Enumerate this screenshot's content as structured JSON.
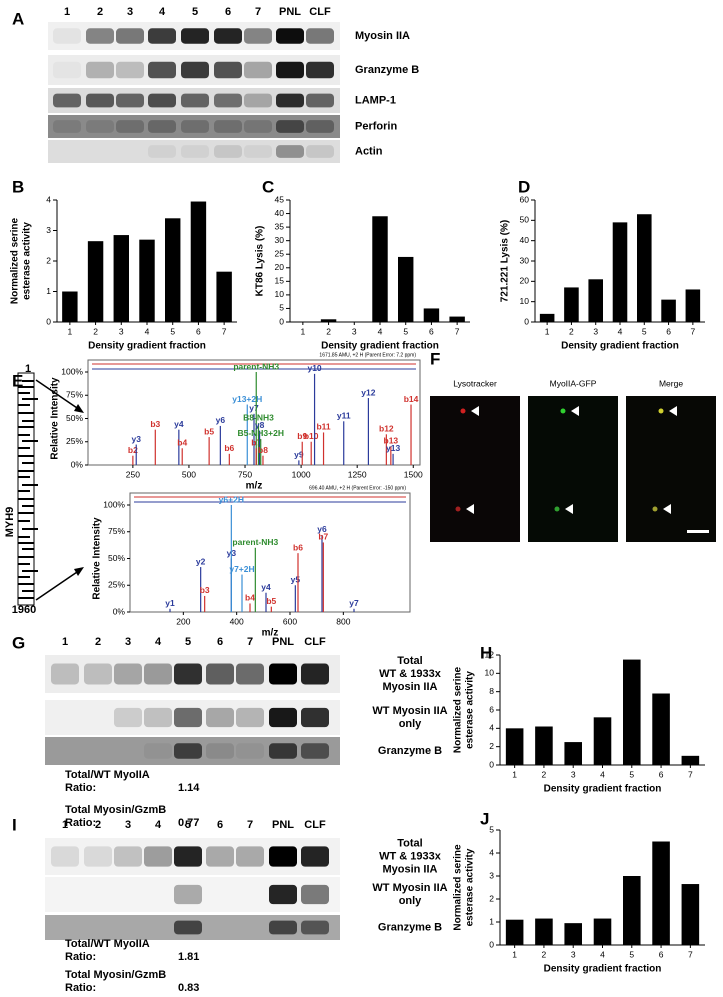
{
  "panel_labels": [
    "A",
    "B",
    "C",
    "D",
    "E",
    "F",
    "G",
    "H",
    "I",
    "J"
  ],
  "blot_a": {
    "lanes": [
      "1",
      "2",
      "3",
      "4",
      "5",
      "6",
      "7",
      "PNL",
      "CLF"
    ],
    "rows": [
      "Myosin IIA",
      "Granzyme B",
      "LAMP-1",
      "Perforin",
      "Actin"
    ]
  },
  "mass_spec": {
    "protein": "MYH9",
    "start": 1,
    "end": 1960
  },
  "microscopy": {
    "channels": [
      "Lysotracker",
      "MyoIIA-GFP",
      "Merge"
    ]
  },
  "blot_g": {
    "lanes": [
      "1",
      "2",
      "3",
      "4",
      "5",
      "6",
      "7",
      "PNL",
      "CLF"
    ],
    "rows": [
      [
        "Total",
        "WT & 1933x",
        "Myosin IIA"
      ],
      [
        "WT Myosin IIA",
        "only"
      ],
      [
        "Granzyme B"
      ]
    ],
    "ratios": [
      {
        "label": [
          "Total/WT MyoIIA",
          "Ratio:"
        ],
        "value": 1.14
      },
      {
        "label": [
          "Total Myosin/GzmB",
          "Ratio:"
        ],
        "value": 0.77
      }
    ]
  },
  "blot_i": {
    "lanes": [
      "1",
      "2",
      "3",
      "4",
      "5",
      "6",
      "7",
      "PNL",
      "CLF"
    ],
    "rows": [
      [
        "Total",
        "WT & 1933x",
        "Myosin IIA"
      ],
      [
        "WT Myosin IIA",
        "only"
      ],
      [
        "Granzyme B"
      ]
    ],
    "ratios": [
      {
        "label": [
          "Total/WT MyoIIA",
          "Ratio:"
        ],
        "value": 1.81
      },
      {
        "label": [
          "Total Myosin/GzmB",
          "Ratio:"
        ],
        "value": 0.83
      }
    ]
  },
  "chart_data": [
    {
      "type": "bar",
      "ylabel": [
        "Normalized serine",
        "esterase activity"
      ],
      "xlabel": "Density gradient fraction",
      "categories": [
        "1",
        "2",
        "3",
        "4",
        "5",
        "6",
        "7"
      ],
      "values": [
        1,
        2.65,
        2.85,
        2.7,
        3.4,
        3.95,
        1.65
      ],
      "color": "#000000",
      "ylim": [
        0,
        4
      ],
      "yticks": [
        0,
        1,
        2,
        3,
        4
      ]
    },
    {
      "type": "bar",
      "ylabel": "KT86 Lysis (%)",
      "xlabel": "Density gradient fraction",
      "categories": [
        "1",
        "2",
        "3",
        "4",
        "5",
        "6",
        "7"
      ],
      "values": [
        0,
        1,
        0,
        39,
        24,
        5,
        2
      ],
      "color": "#000000",
      "ylim": [
        0,
        45
      ],
      "yticks": [
        0,
        5,
        10,
        15,
        20,
        25,
        30,
        35,
        40,
        45
      ]
    },
    {
      "type": "bar",
      "ylabel": "721.221 Lysis (%)",
      "xlabel": "Density gradient fraction",
      "categories": [
        "1",
        "2",
        "3",
        "4",
        "5",
        "6",
        "7"
      ],
      "values": [
        4,
        17,
        21,
        49,
        53,
        11,
        16
      ],
      "color": "#000000",
      "ylim": [
        0,
        60
      ],
      "yticks": [
        0,
        10,
        20,
        30,
        40,
        50,
        60
      ]
    },
    {
      "type": "spectrum",
      "subtitle": "1671.85 AMU, +2 H (Parent Error: 7.2 ppm)",
      "ylabel": "Relative Intensity",
      "xlabel": "m/z",
      "x": [
        250,
        265,
        350,
        455,
        470,
        590,
        640,
        680,
        760,
        790,
        800,
        800,
        810,
        815,
        820,
        830,
        990,
        1005,
        1045,
        1060,
        1100,
        1190,
        1300,
        1380,
        1400,
        1410,
        1490
      ],
      "values": [
        10,
        22,
        38,
        38,
        18,
        30,
        42,
        12,
        65,
        55,
        100,
        18,
        45,
        37,
        28,
        10,
        5,
        25,
        25,
        98,
        35,
        47,
        72,
        33,
        20,
        12,
        65
      ],
      "peak_labels": [
        "b2",
        "y3",
        "b3",
        "y4",
        "b4",
        "b5",
        "y6",
        "b6",
        "y13+2H",
        "y7",
        "parent-NH3",
        "b7",
        "B8-NH3",
        "y8",
        "B5-NH3+2H",
        "b8",
        "y9",
        "b9",
        "b10",
        "y10",
        "b11",
        "y11",
        "y12",
        "b12",
        "b13",
        "y13",
        "b14"
      ],
      "peak_colors": [
        "#d0312d",
        "#2b3b9b",
        "#d0312d",
        "#2b3b9b",
        "#d0312d",
        "#d0312d",
        "#2b3b9b",
        "#d0312d",
        "#3a8fd6",
        "#2b3b9b",
        "#2e8b2e",
        "#d0312d",
        "#2e8b2e",
        "#2b3b9b",
        "#2e8b2e",
        "#d0312d",
        "#2b3b9b",
        "#d0312d",
        "#d0312d",
        "#2b3b9b",
        "#d0312d",
        "#2b3b9b",
        "#2b3b9b",
        "#d0312d",
        "#d0312d",
        "#2b3b9b",
        "#d0312d"
      ],
      "xlim": [
        50,
        1530
      ],
      "xticks": [
        250,
        500,
        750,
        1000,
        1250,
        1500
      ],
      "ylim": [
        0,
        100
      ],
      "yticks": [
        {
          "value": 0,
          "label": "0%"
        },
        {
          "value": 25,
          "label": "25%"
        },
        {
          "value": 50,
          "label": "50%"
        },
        {
          "value": 75,
          "label": "75%"
        },
        {
          "value": 100,
          "label": "100%"
        }
      ]
    },
    {
      "type": "spectrum",
      "subtitle": "696.40 AMU, +2 H (Parent Error: -150 ppm)",
      "ylabel": "Relative Intensity",
      "xlabel": "m/z",
      "x": [
        150,
        265,
        280,
        380,
        380,
        420,
        450,
        470,
        510,
        530,
        620,
        630,
        720,
        725,
        840
      ],
      "values": [
        3,
        42,
        15,
        50,
        100,
        35,
        8,
        60,
        18,
        5,
        25,
        55,
        72,
        65,
        3
      ],
      "peak_labels": [
        "y1",
        "y2",
        "b3",
        "y3",
        "y6+2H",
        "y7+2H",
        "b4",
        "parent-NH3",
        "y4",
        "b5",
        "y5",
        "b6",
        "y6",
        "b7",
        "y7"
      ],
      "peak_colors": [
        "#2b3b9b",
        "#2b3b9b",
        "#d0312d",
        "#2b3b9b",
        "#3a8fd6",
        "#3a8fd6",
        "#d0312d",
        "#2e8b2e",
        "#2b3b9b",
        "#d0312d",
        "#2b3b9b",
        "#d0312d",
        "#2b3b9b",
        "#d0312d",
        "#2b3b9b"
      ],
      "xlim": [
        0,
        1050
      ],
      "xticks": [
        200,
        400,
        600,
        800
      ],
      "ylim": [
        0,
        100
      ],
      "yticks": [
        {
          "value": 0,
          "label": "0%"
        },
        {
          "value": 25,
          "label": "25%"
        },
        {
          "value": 50,
          "label": "50%"
        },
        {
          "value": 75,
          "label": "75%"
        },
        {
          "value": 100,
          "label": "100%"
        }
      ]
    },
    {
      "type": "bar",
      "ylabel": [
        "Normalized serine",
        "esterase activity"
      ],
      "xlabel": "Density gradient fraction",
      "categories": [
        "1",
        "2",
        "3",
        "4",
        "5",
        "6",
        "7"
      ],
      "values": [
        4,
        4.2,
        2.5,
        5.2,
        11.5,
        7.8,
        1
      ],
      "color": "#000000",
      "ylim": [
        0,
        12
      ],
      "yticks": [
        0,
        2,
        4,
        6,
        8,
        10,
        12
      ]
    },
    {
      "type": "bar",
      "ylabel": [
        "Normalized serine",
        "esterase activity"
      ],
      "xlabel": "Density gradient fraction",
      "categories": [
        "1",
        "2",
        "3",
        "4",
        "5",
        "6",
        "7"
      ],
      "values": [
        1.1,
        1.15,
        0.95,
        1.15,
        3,
        4.5,
        2.65
      ],
      "color": "#000000",
      "ylim": [
        0,
        5
      ],
      "yticks": [
        0,
        1,
        2,
        3,
        4,
        5
      ]
    }
  ]
}
